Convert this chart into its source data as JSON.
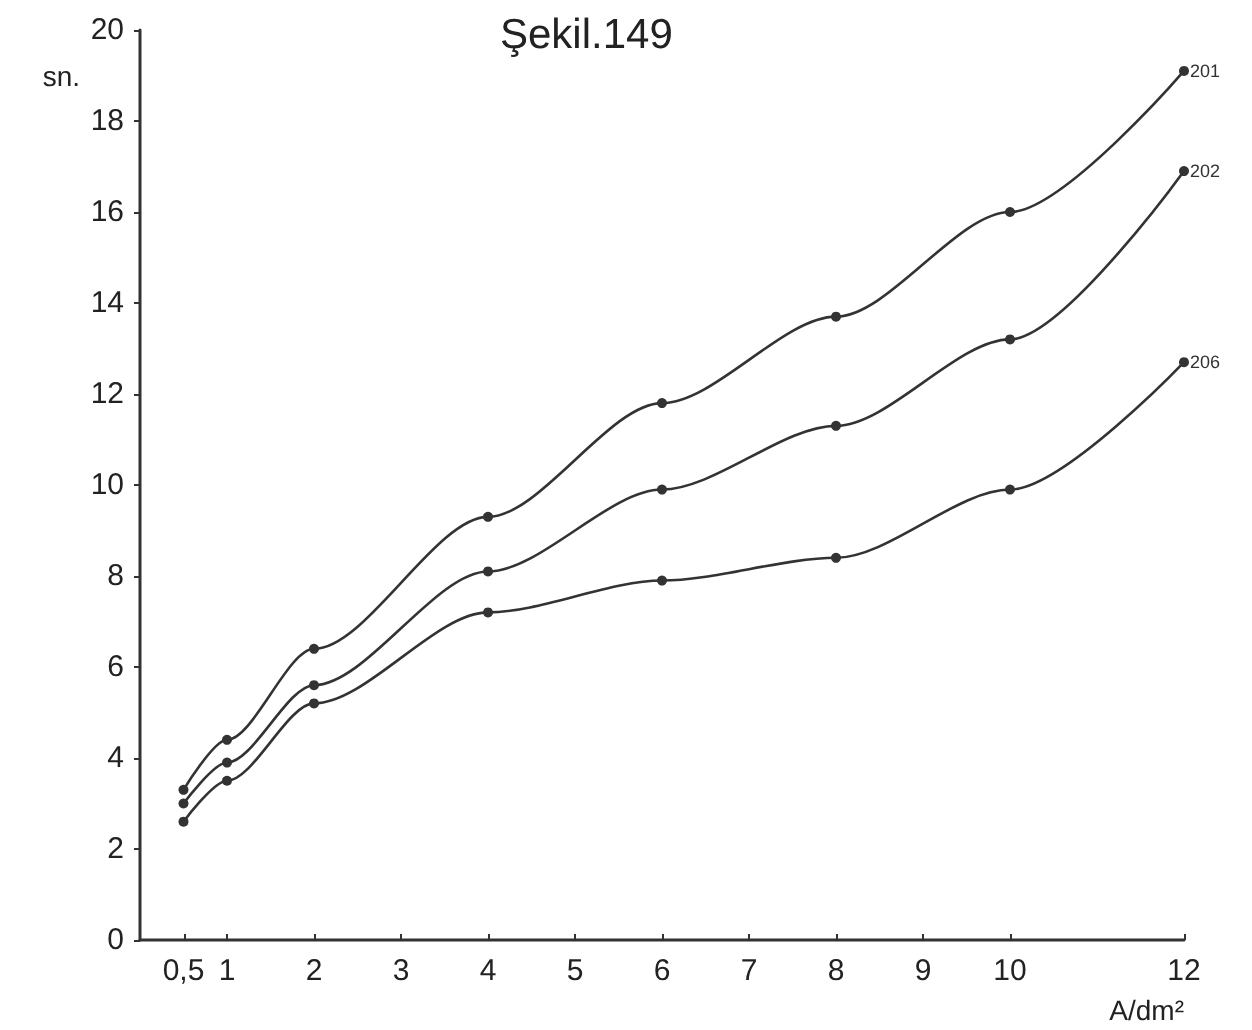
{
  "chart_data": {
    "type": "line",
    "title": "Şekil.149",
    "xlabel": "A/dm²",
    "ylabel": "sn.",
    "x": [
      0.5,
      1,
      2,
      4,
      6,
      8,
      10,
      12
    ],
    "series": [
      {
        "name": "201",
        "color": "#333333",
        "values": [
          3.3,
          4.4,
          6.4,
          9.3,
          11.8,
          13.7,
          16.0,
          19.1
        ]
      },
      {
        "name": "202",
        "color": "#333333",
        "values": [
          3.0,
          3.9,
          5.6,
          8.1,
          9.9,
          11.3,
          13.2,
          16.9
        ]
      },
      {
        "name": "206",
        "color": "#333333",
        "values": [
          2.6,
          3.5,
          5.2,
          7.2,
          7.9,
          8.4,
          9.9,
          12.7
        ]
      }
    ],
    "xlim": [
      0,
      12
    ],
    "xticks": [
      {
        "value": 0.5,
        "label": "0,5"
      },
      1,
      2,
      3,
      4,
      5,
      6,
      7,
      8,
      9,
      10,
      12
    ],
    "ylim": [
      0,
      20
    ],
    "yticks": [
      0,
      2,
      4,
      6,
      8,
      10,
      12,
      14,
      16,
      18,
      20
    ],
    "grid": false,
    "legend": false,
    "marker": "circle",
    "line_style": "solid"
  }
}
